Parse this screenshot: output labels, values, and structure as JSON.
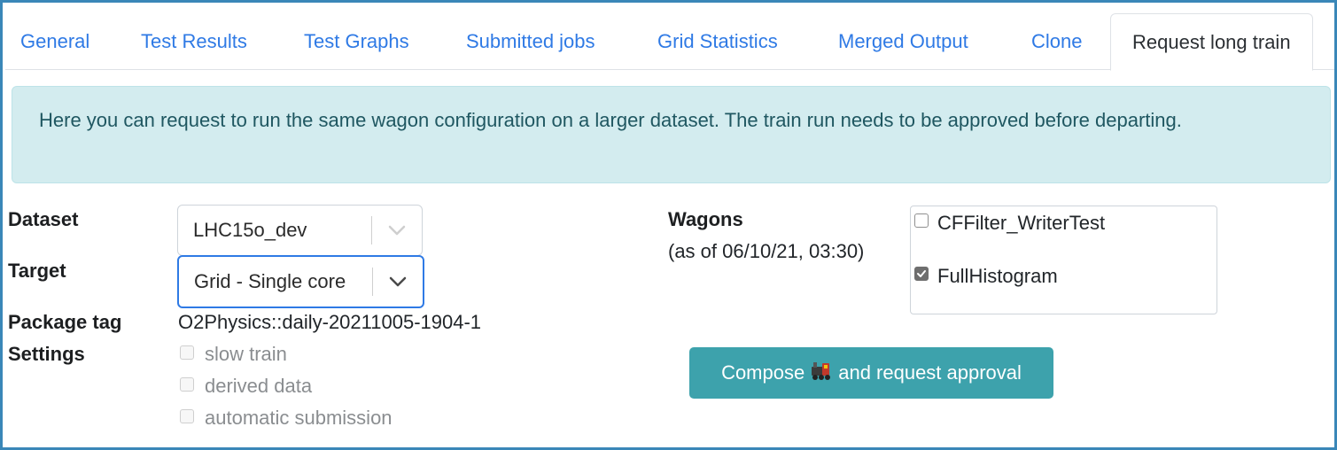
{
  "tabs": [
    {
      "label": "General"
    },
    {
      "label": "Test Results"
    },
    {
      "label": "Test Graphs"
    },
    {
      "label": "Submitted jobs"
    },
    {
      "label": "Grid Statistics"
    },
    {
      "label": "Merged Output"
    },
    {
      "label": "Clone"
    },
    {
      "label": "Request long train",
      "active": true
    }
  ],
  "alert": {
    "text": "Here you can request to run the same wagon configuration on a larger dataset. The train run needs to be approved before departing."
  },
  "form": {
    "dataset_label": "Dataset",
    "dataset_value": "LHC15o_dev",
    "target_label": "Target",
    "target_value": "Grid - Single core",
    "package_tag_label": "Package tag",
    "package_tag_value": "O2Physics::daily-20211005-1904-1",
    "settings_label": "Settings",
    "settings": [
      {
        "label": "slow train",
        "checked": false,
        "disabled": true
      },
      {
        "label": "derived data",
        "checked": false,
        "disabled": true
      },
      {
        "label": "automatic submission",
        "checked": false,
        "disabled": true
      }
    ]
  },
  "wagons": {
    "label": "Wagons",
    "as_of": "(as of 06/10/21, 03:30)",
    "items": [
      {
        "label": "CFFilter_WriterTest",
        "checked": false
      },
      {
        "label": "FullHistogram",
        "checked": true
      }
    ]
  },
  "action": {
    "label_before": "Compose",
    "icon": "train-icon",
    "label_after": "and request approval"
  },
  "colors": {
    "frame": "#3a87b8",
    "link": "#2f7ae5",
    "alert_bg": "#d3ecef",
    "button": "#3da2ac"
  }
}
